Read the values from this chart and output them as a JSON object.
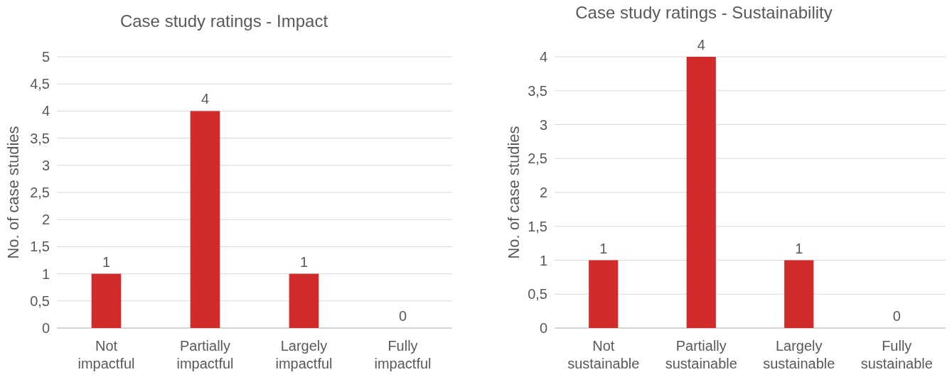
{
  "chart_data": [
    {
      "type": "bar",
      "title": "Case study ratings - Impact",
      "ylabel": "No. of case studies",
      "categories": [
        "Not impactful",
        "Partially impactful",
        "Largely impactful",
        "Fully impactful"
      ],
      "values": [
        1,
        4,
        1,
        0
      ],
      "color": "#d22b2b",
      "ylim": [
        0,
        5
      ],
      "yticks": [
        0,
        {
          "value": 0.5,
          "label": "0,5"
        },
        1,
        {
          "value": 1.5,
          "label": "1,5"
        },
        2,
        {
          "value": 2.5,
          "label": "2,5"
        },
        3,
        {
          "value": 3.5,
          "label": "3,5"
        },
        4,
        {
          "value": 4.5,
          "label": "4,5"
        },
        5
      ],
      "grid": "y",
      "data_labels": true
    },
    {
      "type": "bar",
      "title": "Case study ratings - Sustainability",
      "ylabel": "No. of case studies",
      "categories": [
        "Not sustainable",
        "Partially sustainable",
        "Largely sustainable",
        "Fully sustainable"
      ],
      "values": [
        1,
        4,
        1,
        0
      ],
      "color": "#d22b2b",
      "ylim": [
        0,
        4
      ],
      "yticks": [
        0,
        {
          "value": 0.5,
          "label": "0,5"
        },
        1,
        {
          "value": 1.5,
          "label": "1,5"
        },
        2,
        {
          "value": 2.5,
          "label": "2,5"
        },
        3,
        {
          "value": 3.5,
          "label": "3,5"
        },
        4
      ],
      "grid": "y",
      "data_labels": true
    }
  ]
}
